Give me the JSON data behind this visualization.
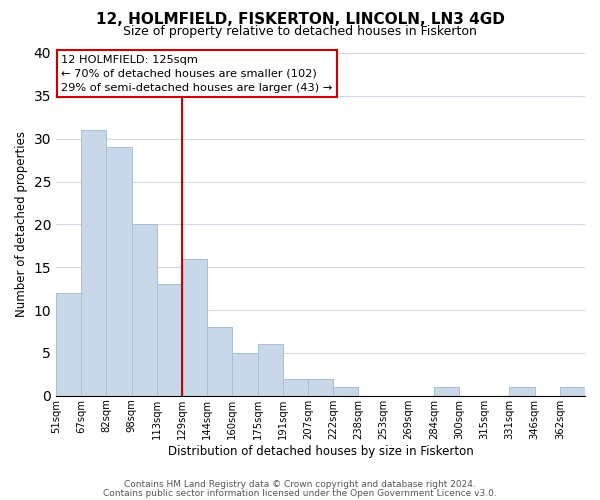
{
  "title": "12, HOLMFIELD, FISKERTON, LINCOLN, LN3 4GD",
  "subtitle": "Size of property relative to detached houses in Fiskerton",
  "xlabel": "Distribution of detached houses by size in Fiskerton",
  "ylabel": "Number of detached properties",
  "bar_heights": [
    12,
    31,
    29,
    20,
    13,
    16,
    8,
    5,
    6,
    2,
    2,
    1,
    0,
    0,
    0,
    1,
    0,
    0,
    1,
    0,
    1
  ],
  "n_bars": 21,
  "bar_color": "#c8d8e8",
  "bar_edge_color": "#a8c0d4",
  "vline_bar_idx": 5,
  "vline_color": "#cc0000",
  "ylim": [
    0,
    40
  ],
  "yticks": [
    0,
    5,
    10,
    15,
    20,
    25,
    30,
    35,
    40
  ],
  "tick_labels": [
    "51sqm",
    "67sqm",
    "82sqm",
    "98sqm",
    "113sqm",
    "129sqm",
    "144sqm",
    "160sqm",
    "175sqm",
    "191sqm",
    "207sqm",
    "222sqm",
    "238sqm",
    "253sqm",
    "269sqm",
    "284sqm",
    "300sqm",
    "315sqm",
    "331sqm",
    "346sqm",
    "362sqm"
  ],
  "annotation_line1": "12 HOLMFIELD: 125sqm",
  "annotation_line2": "← 70% of detached houses are smaller (102)",
  "annotation_line3": "29% of semi-detached houses are larger (43) →",
  "annotation_box_color": "#ffffff",
  "annotation_box_edge": "#cc0000",
  "footer_line1": "Contains HM Land Registry data © Crown copyright and database right 2024.",
  "footer_line2": "Contains public sector information licensed under the Open Government Licence v3.0.",
  "background_color": "#ffffff",
  "grid_color": "#d0d8e4"
}
